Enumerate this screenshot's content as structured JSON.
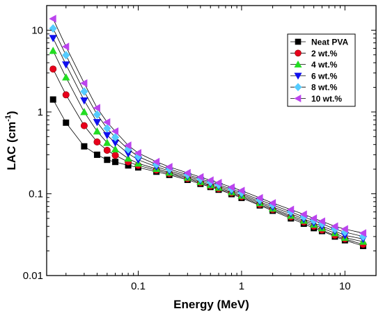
{
  "chart_data": {
    "type": "line",
    "title": "",
    "xlabel": "Energy (MeV)",
    "ylabel_main": "LAC (cm",
    "ylabel_sup": "-1",
    "ylabel_close": ")",
    "x_scale": "log",
    "y_scale": "log",
    "xlim": [
      0.013,
      20
    ],
    "ylim": [
      0.01,
      20
    ],
    "x_ticks": [
      {
        "value": 0.1,
        "label": "0.1"
      },
      {
        "value": 1,
        "label": "1"
      },
      {
        "value": 10,
        "label": "10"
      }
    ],
    "y_ticks": [
      {
        "value": 0.01,
        "label": "0.01"
      },
      {
        "value": 0.1,
        "label": "0.1"
      },
      {
        "value": 1,
        "label": "1"
      },
      {
        "value": 10,
        "label": "10"
      }
    ],
    "grid": false,
    "legend_position": "top-right",
    "x": [
      0.015,
      0.02,
      0.03,
      0.04,
      0.05,
      0.06,
      0.08,
      0.1,
      0.15,
      0.2,
      0.3,
      0.4,
      0.5,
      0.6,
      0.8,
      1,
      1.5,
      2,
      3,
      4,
      5,
      6,
      8,
      10,
      15
    ],
    "series": [
      {
        "name": "Neat PVA",
        "color": "#000000",
        "marker": "square",
        "values": [
          1.42,
          0.74,
          0.38,
          0.3,
          0.26,
          0.245,
          0.222,
          0.21,
          0.186,
          0.17,
          0.148,
          0.132,
          0.121,
          0.112,
          0.099,
          0.089,
          0.072,
          0.062,
          0.05,
          0.043,
          0.038,
          0.035,
          0.03,
          0.027,
          0.023
        ]
      },
      {
        "name": "2 wt.%",
        "color": "#e8001c",
        "marker": "circle",
        "values": [
          3.35,
          1.62,
          0.68,
          0.43,
          0.34,
          0.295,
          0.245,
          0.222,
          0.194,
          0.176,
          0.153,
          0.136,
          0.124,
          0.115,
          0.102,
          0.092,
          0.074,
          0.064,
          0.052,
          0.045,
          0.04,
          0.036,
          0.031,
          0.028,
          0.024
        ]
      },
      {
        "name": "4 wt.%",
        "color": "#22dd22",
        "marker": "triangle-up",
        "values": [
          5.6,
          2.65,
          1.0,
          0.58,
          0.42,
          0.35,
          0.27,
          0.235,
          0.202,
          0.182,
          0.158,
          0.14,
          0.128,
          0.119,
          0.105,
          0.095,
          0.077,
          0.066,
          0.054,
          0.047,
          0.042,
          0.038,
          0.033,
          0.029,
          0.026
        ]
      },
      {
        "name": "6 wt.%",
        "color": "#1010ee",
        "marker": "triangle-down",
        "values": [
          8.0,
          3.8,
          1.38,
          0.75,
          0.52,
          0.42,
          0.31,
          0.26,
          0.214,
          0.19,
          0.164,
          0.146,
          0.133,
          0.124,
          0.109,
          0.099,
          0.08,
          0.069,
          0.057,
          0.049,
          0.044,
          0.04,
          0.035,
          0.031,
          0.028
        ]
      },
      {
        "name": "8 wt.%",
        "color": "#55ccff",
        "marker": "diamond",
        "values": [
          10.5,
          4.95,
          1.78,
          0.93,
          0.63,
          0.49,
          0.35,
          0.285,
          0.228,
          0.2,
          0.171,
          0.152,
          0.139,
          0.129,
          0.114,
          0.103,
          0.084,
          0.073,
          0.06,
          0.052,
          0.047,
          0.043,
          0.037,
          0.034,
          0.03
        ]
      },
      {
        "name": "10 wt.%",
        "color": "#bb44ee",
        "marker": "triangle-left",
        "values": [
          13.8,
          6.3,
          2.25,
          1.12,
          0.75,
          0.58,
          0.39,
          0.315,
          0.246,
          0.213,
          0.18,
          0.16,
          0.146,
          0.136,
          0.12,
          0.109,
          0.089,
          0.077,
          0.064,
          0.056,
          0.05,
          0.046,
          0.04,
          0.037,
          0.033
        ]
      }
    ]
  }
}
